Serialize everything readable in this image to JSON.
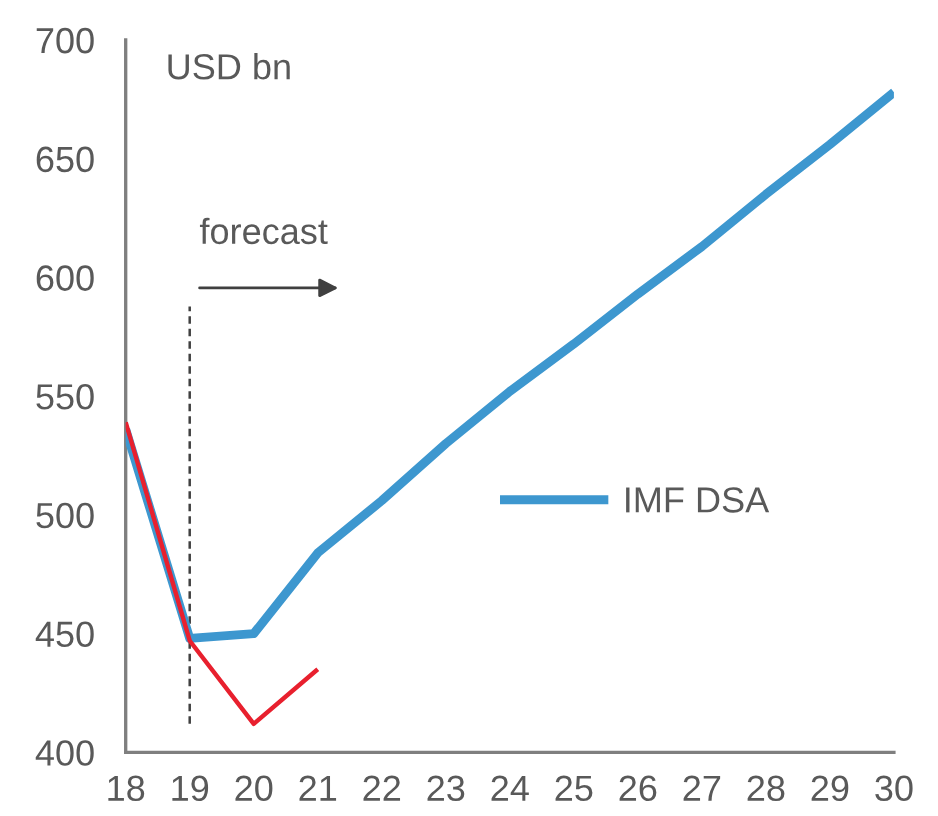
{
  "chart_data": {
    "type": "line",
    "ylabel": "USD bn",
    "x": [
      18,
      19,
      20,
      21,
      22,
      23,
      24,
      25,
      26,
      27,
      28,
      29,
      30
    ],
    "series": [
      {
        "name": "IMF DSA",
        "color": "#3d97cf",
        "values": [
          536,
          448,
          450,
          484,
          506,
          530,
          552,
          572,
          593,
          613,
          635,
          656,
          678
        ]
      },
      {
        "color": "#e8202e",
        "x": [
          18,
          19,
          20,
          21
        ],
        "values": [
          539,
          447,
          412,
          435
        ]
      }
    ],
    "xlim": [
      18,
      30
    ],
    "xticks": [
      18,
      19,
      20,
      21,
      22,
      23,
      24,
      25,
      26,
      27,
      28,
      29,
      30
    ],
    "ylim": [
      400,
      700
    ],
    "yticks": [
      400,
      450,
      500,
      550,
      600,
      650,
      700
    ],
    "ref_lines": [
      {
        "axis": "x",
        "value": 19,
        "line_style": "dashed",
        "color": "#404040"
      }
    ],
    "annotations": [
      "forecast"
    ],
    "legend": "right",
    "grid": false
  }
}
